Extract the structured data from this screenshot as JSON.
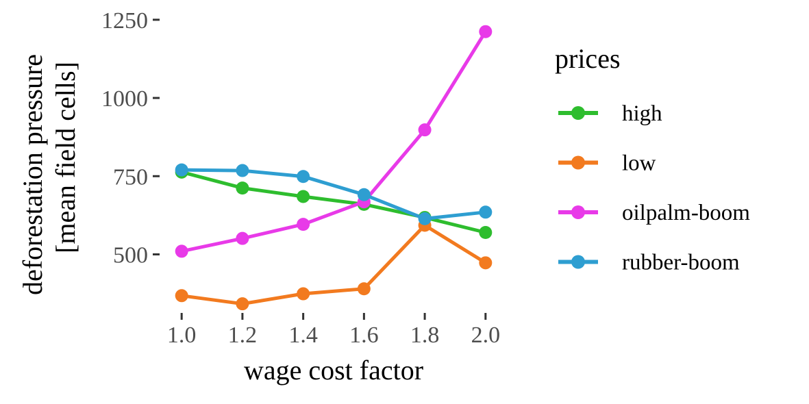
{
  "chart_data": {
    "type": "line",
    "xlabel": "wage cost factor",
    "ylabel_lines": [
      "deforestation pressure",
      "[mean field cells]"
    ],
    "x": [
      1.0,
      1.2,
      1.4,
      1.6,
      1.8,
      2.0
    ],
    "x_tick_labels": [
      "1.0",
      "1.2",
      "1.4",
      "1.6",
      "1.8",
      "2.0"
    ],
    "y_ticks": [
      500,
      750,
      1000,
      1250
    ],
    "y_tick_labels": [
      "500",
      "750",
      "1000",
      "1250"
    ],
    "xlim": [
      0.95,
      2.05
    ],
    "ylim": [
      315,
      1265
    ],
    "grid": false,
    "legend": {
      "title": "prices",
      "placement": "right"
    },
    "series": [
      {
        "name": "high",
        "color": "#2ebd2e",
        "values": [
          763,
          712,
          685,
          660,
          618,
          570
        ]
      },
      {
        "name": "low",
        "color": "#f27a1f",
        "values": [
          368,
          342,
          374,
          390,
          593,
          473
        ]
      },
      {
        "name": "oilpalm-boom",
        "color": "#e83ae8",
        "values": [
          510,
          551,
          596,
          668,
          898,
          1212
        ]
      },
      {
        "name": "rubber-boom",
        "color": "#2e9ed1",
        "values": [
          770,
          768,
          749,
          691,
          614,
          635
        ]
      }
    ]
  }
}
